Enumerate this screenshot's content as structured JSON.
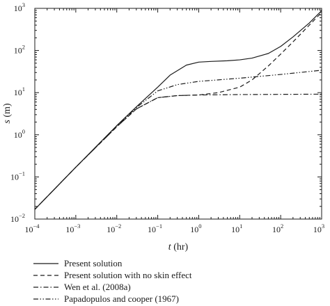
{
  "chart_data": {
    "type": "line",
    "xscale": "log",
    "yscale": "log",
    "xlim": [
      0.0001,
      1000
    ],
    "ylim": [
      0.01,
      1000
    ],
    "xlabel": {
      "var": "t",
      "unit": "(hr)"
    },
    "ylabel": {
      "var": "s",
      "unit": "(m)"
    },
    "x_ticks": [
      {
        "base": "10",
        "exp": "−4",
        "value": 0.0001
      },
      {
        "base": "10",
        "exp": "−3",
        "value": 0.001
      },
      {
        "base": "10",
        "exp": "−2",
        "value": 0.01
      },
      {
        "base": "10",
        "exp": "−1",
        "value": 0.1
      },
      {
        "base": "10",
        "exp": "0",
        "value": 1
      },
      {
        "base": "10",
        "exp": "1",
        "value": 10
      },
      {
        "base": "10",
        "exp": "2",
        "value": 100
      },
      {
        "base": "10",
        "exp": "3",
        "value": 1000
      }
    ],
    "y_ticks": [
      {
        "base": "10",
        "exp": "−2",
        "value": 0.01
      },
      {
        "base": "10",
        "exp": "−1",
        "value": 0.1
      },
      {
        "base": "10",
        "exp": "0",
        "value": 1
      },
      {
        "base": "10",
        "exp": "1",
        "value": 10
      },
      {
        "base": "10",
        "exp": "2",
        "value": 100
      },
      {
        "base": "10",
        "exp": "3",
        "value": 1000
      }
    ],
    "grid": false,
    "legend_position": "below",
    "series": [
      {
        "name": "Present solution",
        "dash": "solid",
        "points": [
          [
            0.0001,
            0.017
          ],
          [
            0.001,
            0.17
          ],
          [
            0.01,
            1.65
          ],
          [
            0.03,
            4.6
          ],
          [
            0.1,
            13.5
          ],
          [
            0.2,
            26
          ],
          [
            0.5,
            45
          ],
          [
            1,
            53
          ],
          [
            2,
            55
          ],
          [
            5,
            57
          ],
          [
            10,
            60
          ],
          [
            20,
            66
          ],
          [
            50,
            85
          ],
          [
            100,
            125
          ],
          [
            200,
            210
          ],
          [
            500,
            450
          ],
          [
            1000,
            880
          ]
        ]
      },
      {
        "name": "Present solution with no skin effect",
        "dash": "dashed",
        "points": [
          [
            0.0001,
            0.017
          ],
          [
            0.001,
            0.17
          ],
          [
            0.01,
            1.55
          ],
          [
            0.03,
            4.1
          ],
          [
            0.1,
            7.6
          ],
          [
            0.3,
            8.5
          ],
          [
            1,
            8.8
          ],
          [
            3,
            10
          ],
          [
            10,
            13.5
          ],
          [
            20,
            20
          ],
          [
            50,
            43
          ],
          [
            100,
            82
          ],
          [
            200,
            160
          ],
          [
            500,
            400
          ],
          [
            1000,
            800
          ]
        ]
      },
      {
        "name": "Wen et al. (2008a)",
        "dash": "dash-dot",
        "points": [
          [
            0.0001,
            0.017
          ],
          [
            0.001,
            0.17
          ],
          [
            0.01,
            1.55
          ],
          [
            0.03,
            4.1
          ],
          [
            0.1,
            7.6
          ],
          [
            0.3,
            8.5
          ],
          [
            1,
            8.8
          ],
          [
            10,
            9
          ],
          [
            100,
            9.1
          ],
          [
            1000,
            9.2
          ]
        ]
      },
      {
        "name": "Papadopulos and cooper (1967)",
        "dash": "dash-dot-dot",
        "points": [
          [
            0.0001,
            0.017
          ],
          [
            0.001,
            0.17
          ],
          [
            0.01,
            1.6
          ],
          [
            0.03,
            4.4
          ],
          [
            0.1,
            11
          ],
          [
            0.3,
            15.5
          ],
          [
            1,
            18.5
          ],
          [
            10,
            22
          ],
          [
            100,
            27
          ],
          [
            1000,
            34
          ]
        ]
      }
    ]
  }
}
